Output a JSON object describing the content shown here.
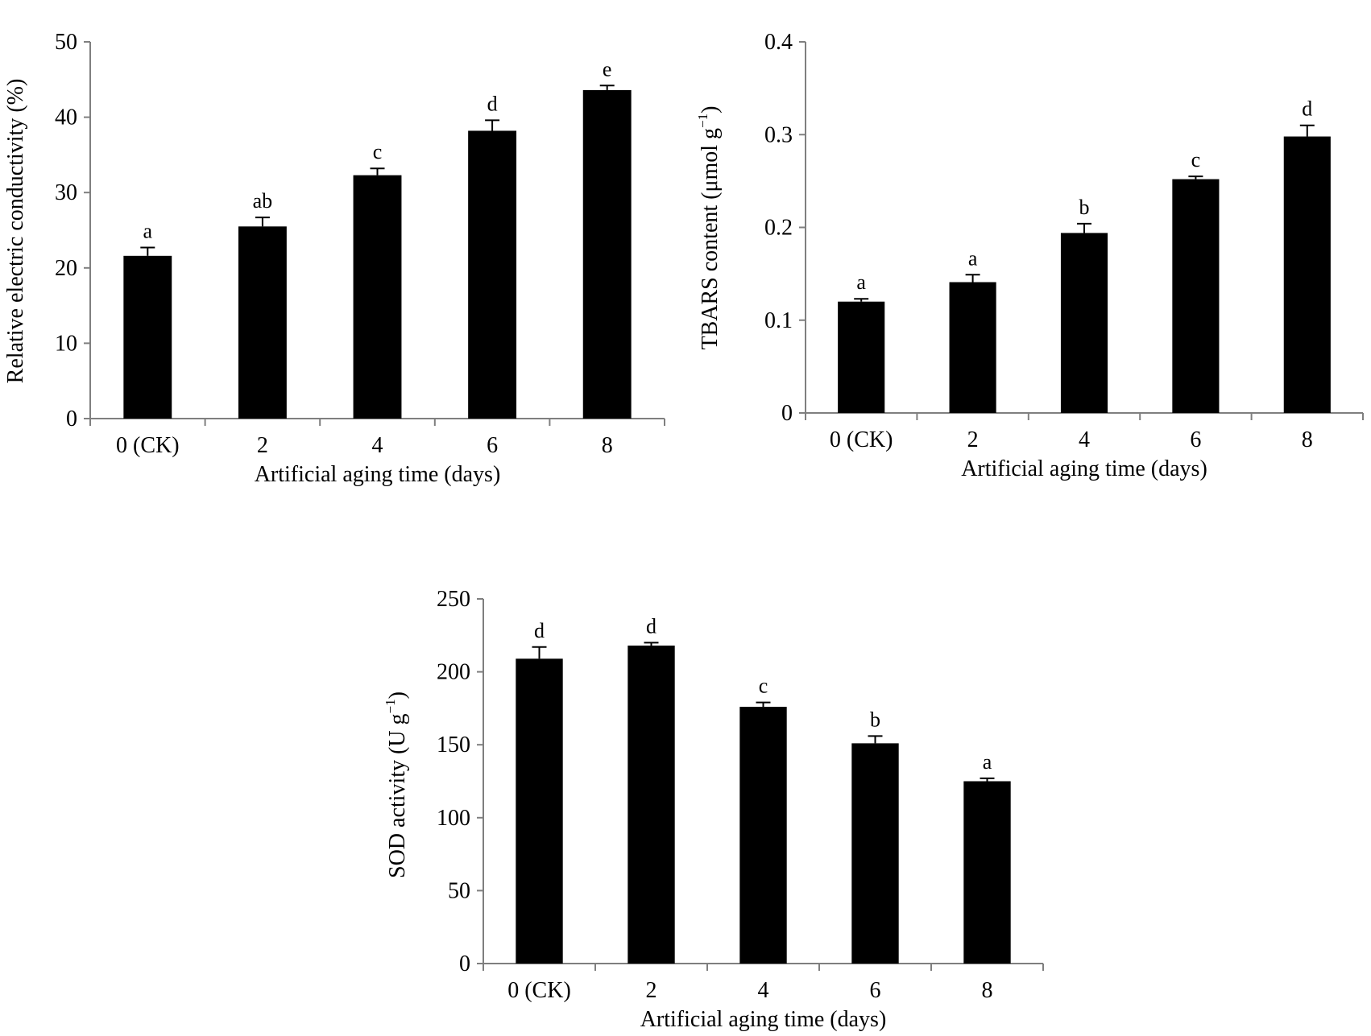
{
  "colors": {
    "bar": "#000000",
    "axis": "#7f7f7f",
    "background": "#ffffff",
    "text": "#000000"
  },
  "chart_data": [
    {
      "id": "conductivity",
      "type": "bar",
      "title": "",
      "xlabel": "Artificial aging time (days)",
      "ylabel": "Relative electric conductivity (%)",
      "ylim": [
        0,
        50
      ],
      "yticks": [
        "0",
        "10",
        "20",
        "30",
        "40",
        "50"
      ],
      "categories": [
        "0 (CK)",
        "2",
        "4",
        "6",
        "8"
      ],
      "values": [
        21.6,
        25.5,
        32.3,
        38.2,
        43.6
      ],
      "errors": [
        1.1,
        1.2,
        0.9,
        1.4,
        0.6
      ],
      "significance": [
        "a",
        "ab",
        "c",
        "d",
        "e"
      ],
      "grid": false,
      "legend": "none"
    },
    {
      "id": "tbars",
      "type": "bar",
      "title": "",
      "xlabel": "Artificial aging time (days)",
      "ylabel": "TBARS content (μmol g",
      "ylabel_sup": "−1",
      "ylabel_tail": ")",
      "ylim": [
        0,
        0.4
      ],
      "yticks": [
        "0",
        "0.1",
        "0.2",
        "0.3",
        "0.4"
      ],
      "categories": [
        "0 (CK)",
        "2",
        "4",
        "6",
        "8"
      ],
      "values": [
        0.12,
        0.141,
        0.194,
        0.252,
        0.298
      ],
      "errors": [
        0.003,
        0.008,
        0.01,
        0.003,
        0.012
      ],
      "significance": [
        "a",
        "a",
        "b",
        "c",
        "d"
      ],
      "grid": false,
      "legend": "none"
    },
    {
      "id": "sod",
      "type": "bar",
      "title": "",
      "xlabel": "Artificial aging time (days)",
      "ylabel": "SOD activity (U g",
      "ylabel_sup": "−1",
      "ylabel_tail": ")",
      "ylim": [
        0,
        250
      ],
      "yticks": [
        "0",
        "50",
        "100",
        "150",
        "200",
        "250"
      ],
      "categories": [
        "0 (CK)",
        "2",
        "4",
        "6",
        "8"
      ],
      "values": [
        209,
        218,
        176,
        151,
        125
      ],
      "errors": [
        8,
        2,
        3,
        5,
        2
      ],
      "significance": [
        "d",
        "d",
        "c",
        "b",
        "a"
      ],
      "grid": false,
      "legend": "none"
    }
  ]
}
